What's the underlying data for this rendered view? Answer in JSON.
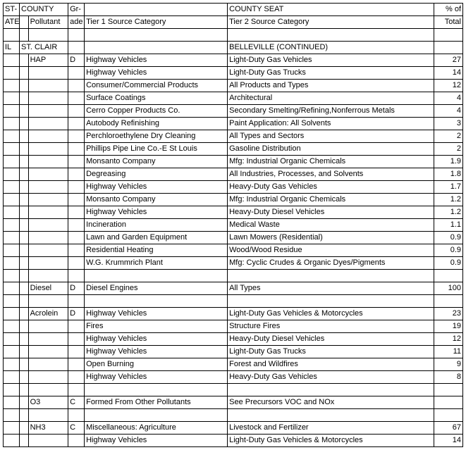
{
  "header": {
    "r1": {
      "state": "ST-",
      "county": "COUNTY",
      "grade": "Gr-",
      "tier1": "",
      "seat": "COUNTY SEAT",
      "pct": "% of"
    },
    "r2": {
      "state": "ATE",
      "pollutant": "Pollutant",
      "grade": "ade",
      "tier1": "Tier 1 Source Category",
      "tier2": "Tier 2 Source Category",
      "pct": "Total"
    }
  },
  "lead": {
    "state": "IL",
    "county": "ST. CLAIR",
    "seat": "BELLEVILLE (CONTINUED)"
  },
  "groups": [
    {
      "pollutant": "HAP",
      "grade": "D",
      "rows": [
        {
          "t1": "Highway Vehicles",
          "t2": "Light-Duty Gas Vehicles",
          "p": "27"
        },
        {
          "t1": "Highway Vehicles",
          "t2": "Light-Duty Gas Trucks",
          "p": "14"
        },
        {
          "t1": "Consumer/Commercial Products",
          "t2": "All Products and Types",
          "p": "12"
        },
        {
          "t1": "Surface Coatings",
          "t2": "Architectural",
          "p": "4"
        },
        {
          "t1": "Cerro Copper Products Co.",
          "t2": "Secondary Smelting/Refining,Nonferrous Metals",
          "p": "4"
        },
        {
          "t1": "Autobody Refinishing",
          "t2": "Paint Application: All Solvents",
          "p": "3"
        },
        {
          "t1": "Perchloroethylene Dry Cleaning",
          "t2": "All Types and Sectors",
          "p": "2"
        },
        {
          "t1": "Phillips Pipe Line Co.-E St Louis",
          "t2": "Gasoline Distribution",
          "p": "2"
        },
        {
          "t1": "Monsanto Company",
          "t2": "Mfg: Industrial Organic Chemicals",
          "p": "1.9"
        },
        {
          "t1": "Degreasing",
          "t2": "All Industries, Processes, and Solvents",
          "p": "1.8"
        },
        {
          "t1": "Highway Vehicles",
          "t2": "Heavy-Duty Gas Vehicles",
          "p": "1.7"
        },
        {
          "t1": "Monsanto Company",
          "t2": "Mfg: Industrial Organic Chemicals",
          "p": "1.2"
        },
        {
          "t1": "Highway Vehicles",
          "t2": "Heavy-Duty Diesel Vehicles",
          "p": "1.2"
        },
        {
          "t1": "Incineration",
          "t2": "Medical Waste",
          "p": "1.1"
        },
        {
          "t1": "Lawn and Garden Equipment",
          "t2": "Lawn Mowers (Residential)",
          "p": "0.9"
        },
        {
          "t1": "Residential Heating",
          "t2": "Wood/Wood Residue",
          "p": "0.9"
        },
        {
          "t1": "W.G. Krummrich Plant",
          "t2": "Mfg: Cyclic Crudes & Organic Dyes/Pigments",
          "p": "0.9"
        }
      ]
    },
    {
      "pollutant": "Diesel",
      "grade": "D",
      "rows": [
        {
          "t1": "Diesel Engines",
          "t2": "All Types",
          "p": "100"
        }
      ]
    },
    {
      "pollutant": "Acrolein",
      "grade": "D",
      "rows": [
        {
          "t1": "Highway Vehicles",
          "t2": "Light-Duty Gas Vehicles & Motorcycles",
          "p": "23"
        },
        {
          "t1": "Fires",
          "t2": "Structure Fires",
          "p": "19"
        },
        {
          "t1": "Highway Vehicles",
          "t2": "Heavy-Duty Diesel Vehicles",
          "p": "12"
        },
        {
          "t1": "Highway Vehicles",
          "t2": "Light-Duty Gas Trucks",
          "p": "11"
        },
        {
          "t1": "Open Burning",
          "t2": "Forest and Wildfires",
          "p": "9"
        },
        {
          "t1": "Highway Vehicles",
          "t2": "Heavy-Duty Gas Vehicles",
          "p": "8"
        }
      ]
    },
    {
      "pollutant": "O3",
      "grade": "C",
      "rows": [
        {
          "t1": "Formed From Other Pollutants",
          "t2": "See Precursors VOC and NOx",
          "p": ""
        }
      ]
    },
    {
      "pollutant": "NH3",
      "grade": "C",
      "rows": [
        {
          "t1": "Miscellaneous: Agriculture",
          "t2": "Livestock and Fertilizer",
          "p": "67"
        },
        {
          "t1": "Highway Vehicles",
          "t2": "Light-Duty Gas Vehicles & Motorcycles",
          "p": "14"
        }
      ]
    }
  ]
}
